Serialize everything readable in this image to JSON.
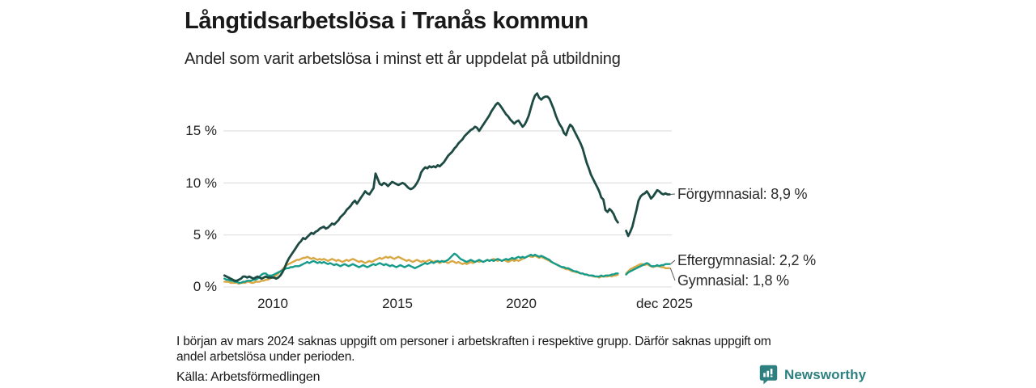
{
  "footer": {
    "note_line1": "I början av mars 2024 saknas uppgift om personer i arbetskraften i respektive grupp. Därför saknas uppgift om",
    "note_line2": "andel arbetslösa under perioden.",
    "source": "Källa: Arbetsförmedlingen"
  },
  "branding": {
    "name": "Newsworthy",
    "color": "#2e8080"
  },
  "chart_data": {
    "type": "line",
    "title": "Långtidsarbetslösa i Tranås kommun",
    "subtitle": "Andel som varit arbetslösa i minst ett år uppdelat på utbildning",
    "x_unit": "month",
    "x_start": "2008-01",
    "x_end": "2025-12",
    "ylim": [
      0,
      19
    ],
    "grid": true,
    "grid_color": "#e3e3e3",
    "legend_position": "right-end-labels",
    "yticks": [
      {
        "value": 0,
        "label": "0 %"
      },
      {
        "value": 5,
        "label": "5 %"
      },
      {
        "value": 10,
        "label": "10 %"
      },
      {
        "value": 15,
        "label": "15 %"
      }
    ],
    "xticks": [
      {
        "year": 2010,
        "label": "2010"
      },
      {
        "year": 2015,
        "label": "2015"
      },
      {
        "year": 2020,
        "label": "2020"
      },
      {
        "year": 2025.92,
        "label": "dec 2025"
      }
    ],
    "series": [
      {
        "name": "Gymnasial",
        "color": "#d8a845",
        "end_value": 1.8,
        "end_label": "Gymnasial: 1,8 %",
        "values": [
          0.5,
          0.5,
          0.5,
          0.4,
          0.4,
          0.4,
          0.4,
          0.3,
          0.4,
          0.4,
          0.4,
          0.5,
          0.5,
          0.4,
          0.4,
          0.5,
          0.5,
          0.5,
          0.6,
          0.6,
          0.7,
          0.7,
          0.8,
          0.9,
          1.0,
          1.1,
          1.3,
          1.5,
          1.7,
          1.9,
          2.1,
          2.2,
          2.3,
          2.4,
          2.5,
          2.6,
          2.6,
          2.7,
          2.8,
          2.8,
          2.9,
          2.8,
          2.7,
          2.8,
          2.7,
          2.6,
          2.7,
          2.6,
          2.7,
          2.6,
          2.5,
          2.6,
          2.7,
          2.6,
          2.5,
          2.6,
          2.5,
          2.4,
          2.5,
          2.6,
          2.5,
          2.6,
          2.7,
          2.6,
          2.5,
          2.4,
          2.5,
          2.4,
          2.3,
          2.4,
          2.5,
          2.4,
          2.5,
          2.6,
          2.7,
          2.8,
          2.7,
          2.8,
          2.9,
          2.8,
          2.9,
          2.8,
          2.7,
          2.8,
          2.9,
          2.8,
          2.7,
          2.6,
          2.5,
          2.6,
          2.5,
          2.4,
          2.5,
          2.6,
          2.5,
          2.4,
          2.5,
          2.4,
          2.5,
          2.6,
          2.5,
          2.4,
          2.5,
          2.4,
          2.3,
          2.4,
          2.5,
          2.4,
          2.3,
          2.4,
          2.5,
          2.4,
          2.3,
          2.4,
          2.3,
          2.2,
          2.3,
          2.2,
          2.3,
          2.4,
          2.3,
          2.4,
          2.5,
          2.4,
          2.5,
          2.4,
          2.5,
          2.6,
          2.5,
          2.6,
          2.7,
          2.6,
          2.5,
          2.6,
          2.5,
          2.6,
          2.5,
          2.4,
          2.5,
          2.6,
          2.5,
          2.6,
          2.5,
          2.6,
          2.7,
          2.8,
          2.9,
          3.0,
          2.9,
          2.9,
          3.0,
          2.9,
          2.8,
          2.9,
          2.8,
          2.7,
          2.6,
          2.5,
          2.4,
          2.3,
          2.2,
          2.1,
          2.0,
          1.9,
          1.8,
          1.7,
          1.7,
          1.6,
          1.5,
          1.5,
          1.4,
          1.4,
          1.3,
          1.3,
          1.2,
          1.2,
          1.1,
          1.1,
          1.0,
          1.0,
          1.0,
          0.9,
          1.0,
          1.0,
          1.0,
          1.0,
          1.1,
          1.0,
          1.1,
          1.1,
          1.2,
          null,
          null,
          null,
          1.3,
          1.5,
          1.7,
          1.8,
          1.9,
          2.0,
          2.1,
          2.2,
          2.2,
          2.1,
          2.2,
          2.1,
          2.0,
          1.9,
          2.0,
          2.0,
          2.0,
          1.9,
          1.9,
          1.8,
          1.8,
          1.8
        ]
      },
      {
        "name": "Eftergymnasial",
        "color": "#169b8a",
        "end_value": 2.2,
        "end_label": "Eftergymnasial: 2,2 %",
        "values": [
          0.8,
          0.7,
          0.7,
          0.6,
          0.6,
          0.5,
          0.5,
          0.4,
          0.4,
          0.5,
          0.5,
          0.6,
          0.6,
          0.6,
          0.7,
          0.7,
          0.8,
          1.0,
          1.2,
          1.3,
          1.3,
          1.1,
          1.1,
          1.1,
          1.2,
          1.3,
          1.4,
          1.5,
          1.6,
          1.7,
          1.8,
          1.8,
          1.9,
          1.9,
          2.0,
          2.0,
          2.0,
          2.1,
          2.2,
          2.3,
          2.4,
          2.3,
          2.4,
          2.5,
          2.4,
          2.3,
          2.4,
          2.3,
          2.4,
          2.3,
          2.2,
          2.3,
          2.2,
          2.1,
          2.2,
          2.1,
          2.0,
          2.1,
          2.2,
          2.1,
          2.0,
          2.1,
          2.2,
          2.1,
          2.0,
          1.9,
          2.0,
          2.1,
          2.0,
          1.9,
          2.0,
          2.1,
          2.2,
          2.1,
          2.2,
          2.3,
          2.2,
          2.1,
          2.2,
          2.1,
          2.0,
          2.1,
          2.0,
          1.9,
          2.0,
          2.1,
          2.0,
          1.9,
          2.0,
          2.1,
          2.0,
          1.9,
          1.8,
          1.9,
          2.0,
          2.1,
          2.2,
          2.3,
          2.2,
          2.3,
          2.4,
          2.3,
          2.4,
          2.5,
          2.4,
          2.5,
          2.4,
          2.5,
          2.6,
          2.8,
          3.0,
          3.2,
          3.1,
          2.9,
          2.7,
          2.6,
          2.5,
          2.4,
          2.5,
          2.6,
          2.5,
          2.4,
          2.5,
          2.6,
          2.5,
          2.4,
          2.5,
          2.6,
          2.5,
          2.6,
          2.5,
          2.6,
          2.7,
          2.6,
          2.5,
          2.6,
          2.7,
          2.6,
          2.7,
          2.8,
          2.7,
          2.8,
          2.9,
          2.8,
          2.9,
          2.8,
          2.9,
          3.0,
          3.1,
          3.0,
          3.1,
          3.0,
          2.9,
          3.0,
          2.9,
          2.8,
          2.7,
          2.6,
          2.4,
          2.3,
          2.2,
          2.1,
          2.0,
          1.9,
          1.9,
          1.8,
          1.8,
          1.7,
          1.6,
          1.5,
          1.5,
          1.4,
          1.3,
          1.3,
          1.2,
          1.2,
          1.1,
          1.1,
          1.1,
          1.0,
          1.0,
          1.0,
          1.1,
          1.0,
          1.1,
          1.1,
          1.1,
          1.2,
          1.2,
          1.3,
          1.3,
          null,
          null,
          null,
          1.2,
          1.4,
          1.5,
          1.6,
          1.7,
          1.8,
          1.9,
          2.0,
          2.1,
          2.2,
          2.3,
          2.2,
          2.0,
          2.0,
          2.0,
          2.1,
          2.0,
          2.1,
          2.1,
          2.2,
          2.2,
          2.2
        ]
      },
      {
        "name": "Förgymnasial",
        "color": "#1d4b43",
        "end_value": 8.9,
        "end_label": "Förgymnasial: 8,9 %",
        "values": [
          1.1,
          1.0,
          0.9,
          0.8,
          0.7,
          0.6,
          0.6,
          0.7,
          0.8,
          1.0,
          1.0,
          0.9,
          1.0,
          0.9,
          0.8,
          0.9,
          1.0,
          0.9,
          0.8,
          0.9,
          1.0,
          0.9,
          0.9,
          0.9,
          0.9,
          0.8,
          0.9,
          1.1,
          1.4,
          1.8,
          2.3,
          2.7,
          3.0,
          3.3,
          3.6,
          3.9,
          4.2,
          4.4,
          4.7,
          4.6,
          4.8,
          5.0,
          5.2,
          5.1,
          5.3,
          5.4,
          5.6,
          5.7,
          5.8,
          5.6,
          5.7,
          5.9,
          6.1,
          6.0,
          6.2,
          6.4,
          6.7,
          6.9,
          7.1,
          7.4,
          7.6,
          7.8,
          8.1,
          8.3,
          8.0,
          8.3,
          8.6,
          8.9,
          9.2,
          9.0,
          8.9,
          9.2,
          9.5,
          10.9,
          10.4,
          9.9,
          9.8,
          10.0,
          9.9,
          9.7,
          9.9,
          10.1,
          10.0,
          9.9,
          9.8,
          9.9,
          10.0,
          9.9,
          9.7,
          9.5,
          9.4,
          9.5,
          9.7,
          10.0,
          10.4,
          11.0,
          11.3,
          11.5,
          11.4,
          11.6,
          11.5,
          11.6,
          11.5,
          11.7,
          11.6,
          11.8,
          12.0,
          12.3,
          12.6,
          12.8,
          13.0,
          13.3,
          13.5,
          13.8,
          14.0,
          14.2,
          14.5,
          14.7,
          14.9,
          15.1,
          15.2,
          15.4,
          15.3,
          15.0,
          15.3,
          15.6,
          15.9,
          16.2,
          16.5,
          16.9,
          17.2,
          17.5,
          17.7,
          17.5,
          17.2,
          16.9,
          16.6,
          16.4,
          16.1,
          15.9,
          15.7,
          15.9,
          16.0,
          15.7,
          15.4,
          15.6,
          16.0,
          16.5,
          17.2,
          17.9,
          18.4,
          18.6,
          18.2,
          18.0,
          18.2,
          18.3,
          18.3,
          18.1,
          17.6,
          17.1,
          16.5,
          16.0,
          15.6,
          15.3,
          14.8,
          14.6,
          15.2,
          15.6,
          15.4,
          15.0,
          14.6,
          14.2,
          13.8,
          13.3,
          12.6,
          11.9,
          11.4,
          10.8,
          10.4,
          10.0,
          9.6,
          9.2,
          8.6,
          8.4,
          7.4,
          7.2,
          7.5,
          7.3,
          7.0,
          6.5,
          6.2,
          null,
          null,
          null,
          5.4,
          4.9,
          5.3,
          5.8,
          6.6,
          7.4,
          8.3,
          8.7,
          8.9,
          9.0,
          9.2,
          8.9,
          8.5,
          8.7,
          9.0,
          9.3,
          9.2,
          9.0,
          8.9,
          9.0,
          8.9,
          8.9
        ]
      }
    ]
  }
}
